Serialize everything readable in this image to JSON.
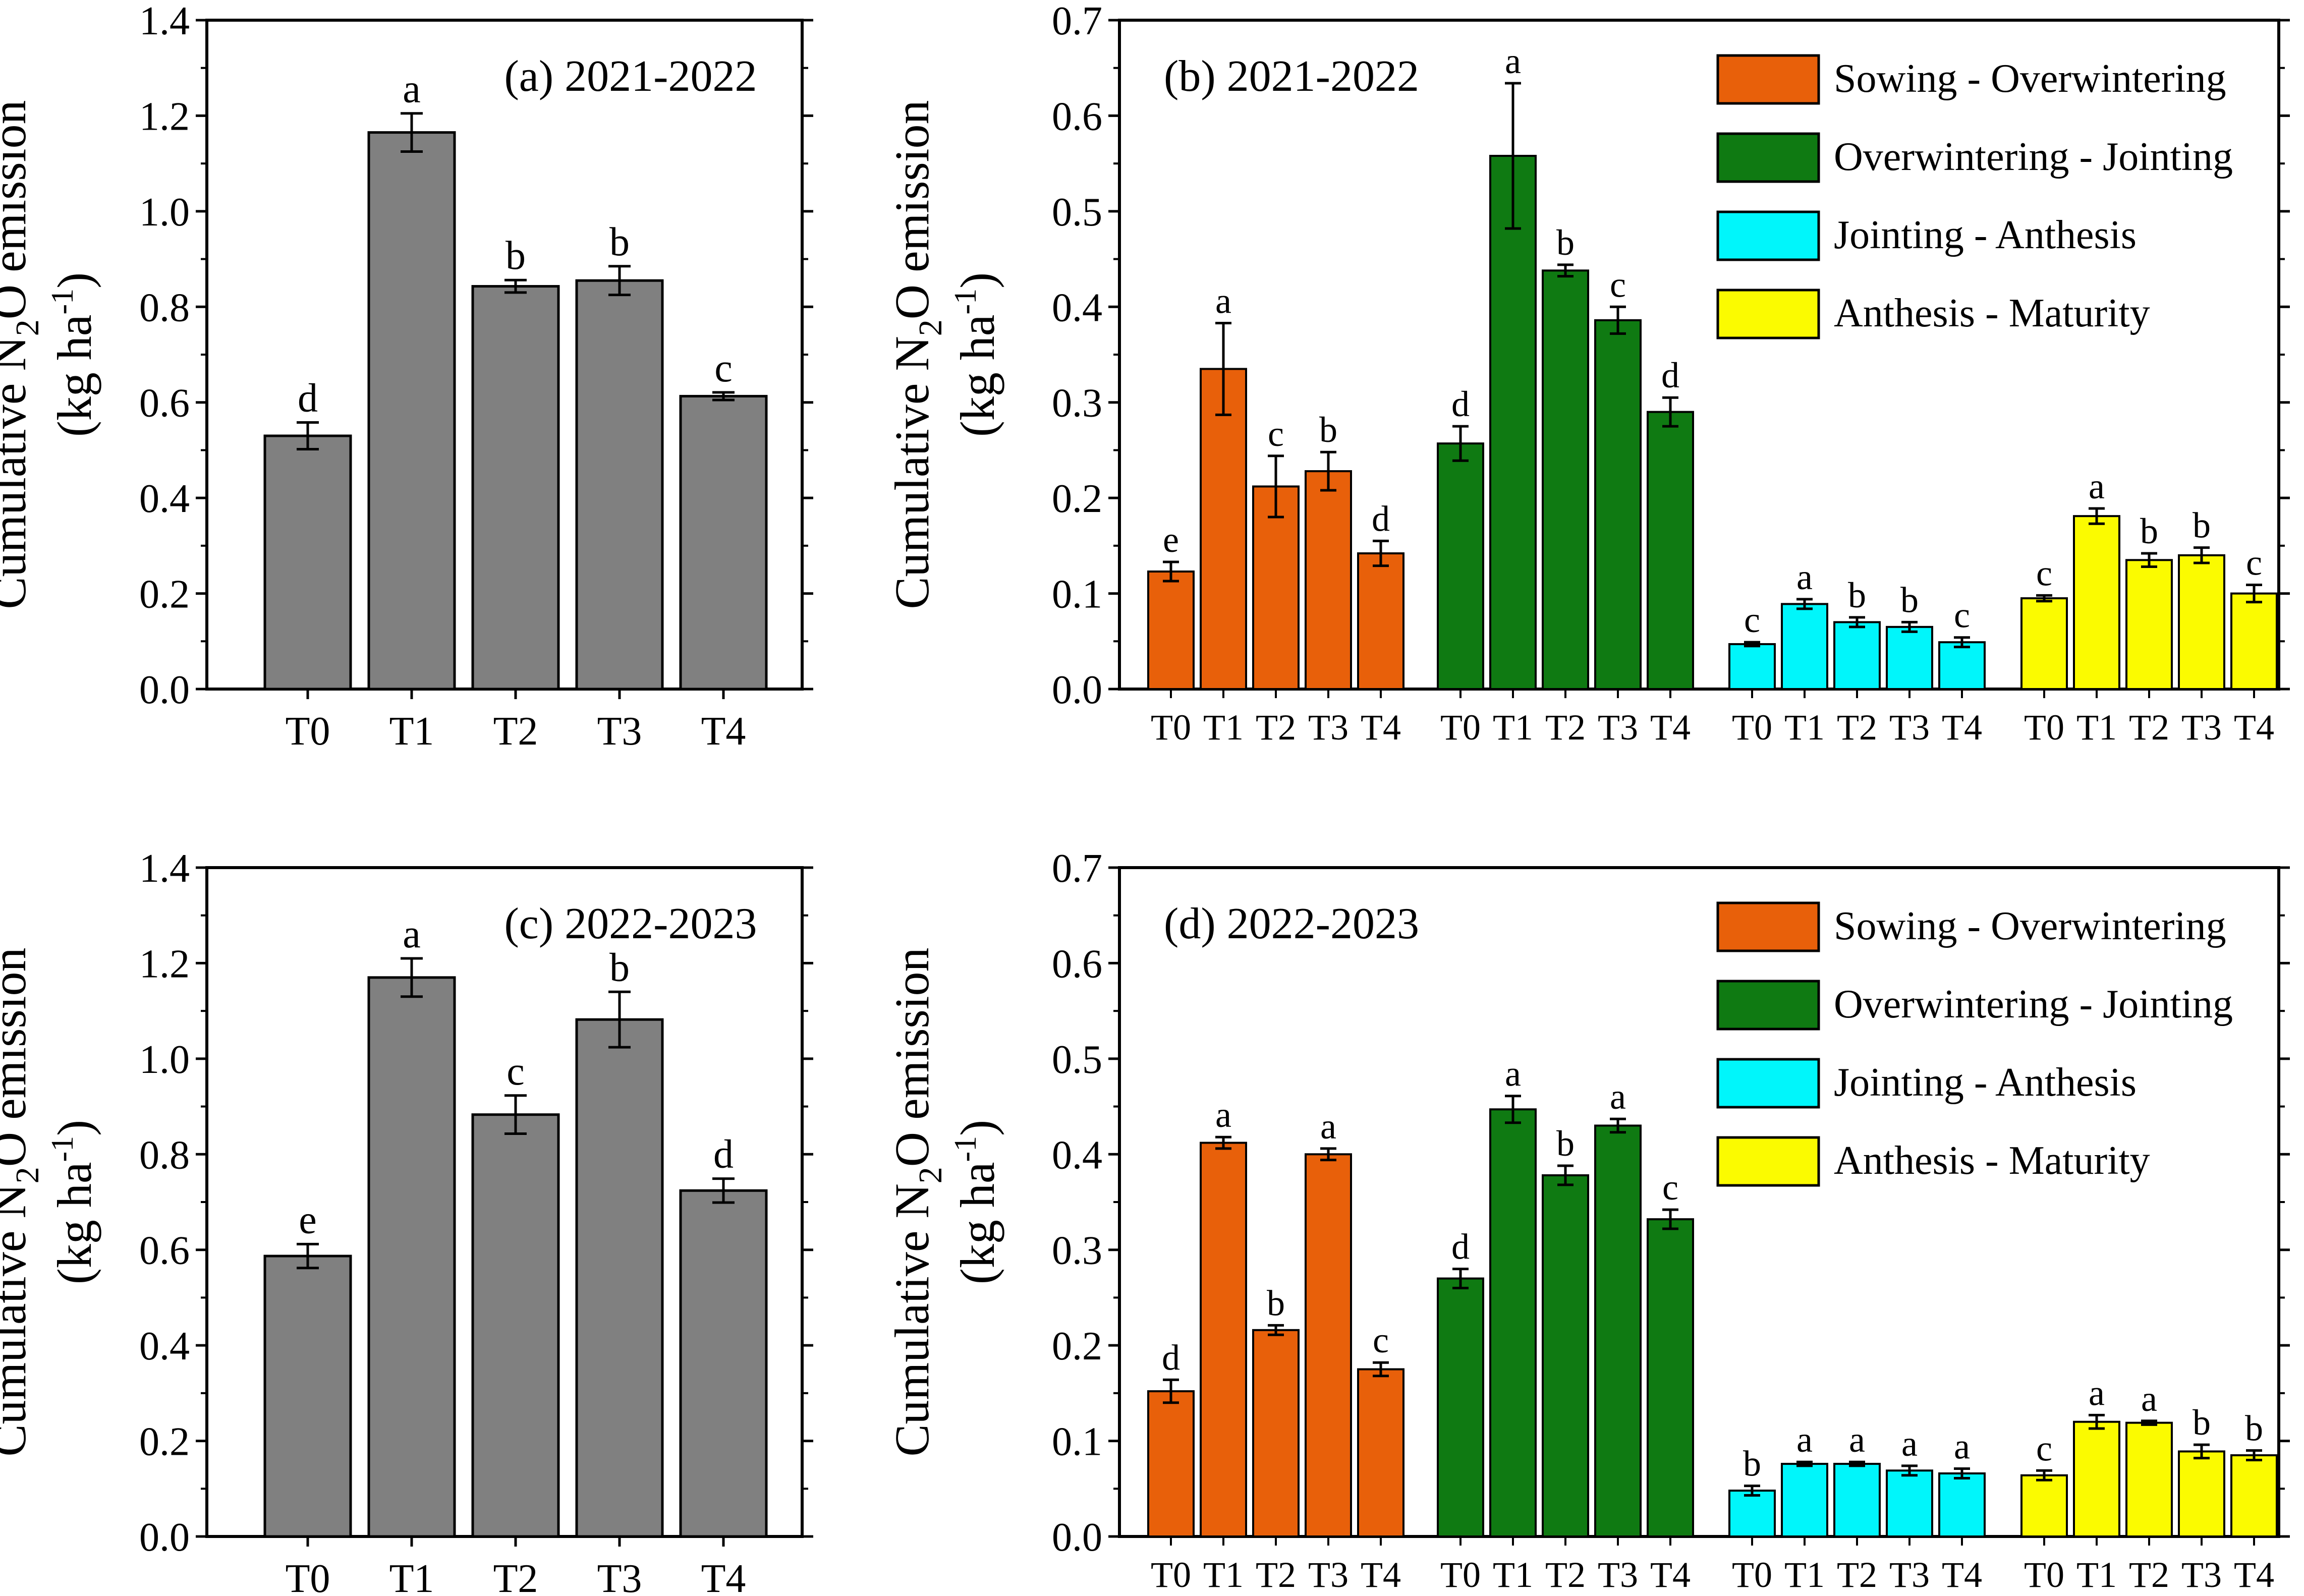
{
  "figure": {
    "panels": [
      "a",
      "b",
      "c",
      "d"
    ],
    "ylabel_main": "Cumulative N",
    "ylabel_sub": "2",
    "ylabel_tail": "O emission",
    "ylabel_unit_open": "(kg ha",
    "ylabel_unit_sup": "-1",
    "ylabel_unit_close": ")"
  },
  "chart_data": [
    {
      "id": "a",
      "type": "bar",
      "title": "(a) 2021-2022",
      "ylim": [
        0,
        1.4
      ],
      "yticks": [
        "0.0",
        "0.2",
        "0.4",
        "0.6",
        "0.8",
        "1.0",
        "1.2",
        "1.4"
      ],
      "categories": [
        "T0",
        "T1",
        "T2",
        "T3",
        "T4"
      ],
      "values": [
        0.53,
        1.165,
        0.843,
        0.855,
        0.613
      ],
      "errors": [
        0.028,
        0.04,
        0.013,
        0.03,
        0.008
      ],
      "letters": [
        "d",
        "a",
        "b",
        "b",
        "c"
      ],
      "color": "#808080"
    },
    {
      "id": "b",
      "type": "bar",
      "title": "(b) 2021-2022",
      "ylim": [
        0,
        0.7
      ],
      "yticks": [
        "0.0",
        "0.1",
        "0.2",
        "0.3",
        "0.4",
        "0.5",
        "0.6",
        "0.7"
      ],
      "categories": [
        "T0",
        "T1",
        "T2",
        "T3",
        "T4"
      ],
      "series": [
        {
          "name": "Sowing - Overwintering",
          "color": "#e8600a",
          "values": [
            0.123,
            0.335,
            0.212,
            0.228,
            0.142
          ],
          "errors": [
            0.01,
            0.048,
            0.032,
            0.02,
            0.013
          ],
          "letters": [
            "e",
            "a",
            "c",
            "b",
            "d"
          ]
        },
        {
          "name": "Overwintering - Jointing",
          "color": "#0f7a12",
          "values": [
            0.257,
            0.558,
            0.438,
            0.386,
            0.29
          ],
          "errors": [
            0.018,
            0.076,
            0.006,
            0.014,
            0.015
          ],
          "letters": [
            "d",
            "a",
            "b",
            "c",
            "d"
          ]
        },
        {
          "name": "Jointing - Anthesis",
          "color": "#00f6fb",
          "values": [
            0.047,
            0.089,
            0.07,
            0.065,
            0.049
          ],
          "errors": [
            0.002,
            0.005,
            0.005,
            0.005,
            0.005
          ],
          "letters": [
            "c",
            "a",
            "b",
            "b",
            "c"
          ]
        },
        {
          "name": "Anthesis - Maturity",
          "color": "#fbfb00",
          "values": [
            0.095,
            0.181,
            0.135,
            0.14,
            0.1
          ],
          "errors": [
            0.003,
            0.008,
            0.007,
            0.008,
            0.009
          ],
          "letters": [
            "c",
            "a",
            "b",
            "b",
            "c"
          ]
        }
      ]
    },
    {
      "id": "c",
      "type": "bar",
      "title": "(c) 2022-2023",
      "ylim": [
        0,
        1.4
      ],
      "yticks": [
        "0.0",
        "0.2",
        "0.4",
        "0.6",
        "0.8",
        "1.0",
        "1.2",
        "1.4"
      ],
      "categories": [
        "T0",
        "T1",
        "T2",
        "T3",
        "T4"
      ],
      "values": [
        0.587,
        1.17,
        0.883,
        1.082,
        0.724
      ],
      "errors": [
        0.025,
        0.04,
        0.04,
        0.058,
        0.025
      ],
      "letters": [
        "e",
        "a",
        "c",
        "b",
        "d"
      ],
      "color": "#808080"
    },
    {
      "id": "d",
      "type": "bar",
      "title": "(d) 2022-2023",
      "ylim": [
        0,
        0.7
      ],
      "yticks": [
        "0.0",
        "0.1",
        "0.2",
        "0.3",
        "0.4",
        "0.5",
        "0.6",
        "0.7"
      ],
      "categories": [
        "T0",
        "T1",
        "T2",
        "T3",
        "T4"
      ],
      "series": [
        {
          "name": "Sowing - Overwintering",
          "color": "#e8600a",
          "values": [
            0.152,
            0.412,
            0.216,
            0.4,
            0.175
          ],
          "errors": [
            0.012,
            0.006,
            0.005,
            0.006,
            0.007
          ],
          "letters": [
            "d",
            "a",
            "b",
            "a",
            "c"
          ]
        },
        {
          "name": "Overwintering - Jointing",
          "color": "#0f7a12",
          "values": [
            0.27,
            0.447,
            0.378,
            0.43,
            0.332
          ],
          "errors": [
            0.01,
            0.014,
            0.01,
            0.007,
            0.01
          ],
          "letters": [
            "d",
            "a",
            "b",
            "a",
            "c"
          ]
        },
        {
          "name": "Jointing - Anthesis",
          "color": "#00f6fb",
          "values": [
            0.048,
            0.076,
            0.076,
            0.069,
            0.066
          ],
          "errors": [
            0.005,
            0.002,
            0.002,
            0.005,
            0.005
          ],
          "letters": [
            "b",
            "a",
            "a",
            "a",
            "a"
          ]
        },
        {
          "name": "Anthesis - Maturity",
          "color": "#fbfb00",
          "values": [
            0.064,
            0.12,
            0.119,
            0.089,
            0.085
          ],
          "errors": [
            0.005,
            0.007,
            0.002,
            0.007,
            0.005
          ],
          "letters": [
            "c",
            "a",
            "a",
            "b",
            "b"
          ]
        }
      ]
    }
  ]
}
